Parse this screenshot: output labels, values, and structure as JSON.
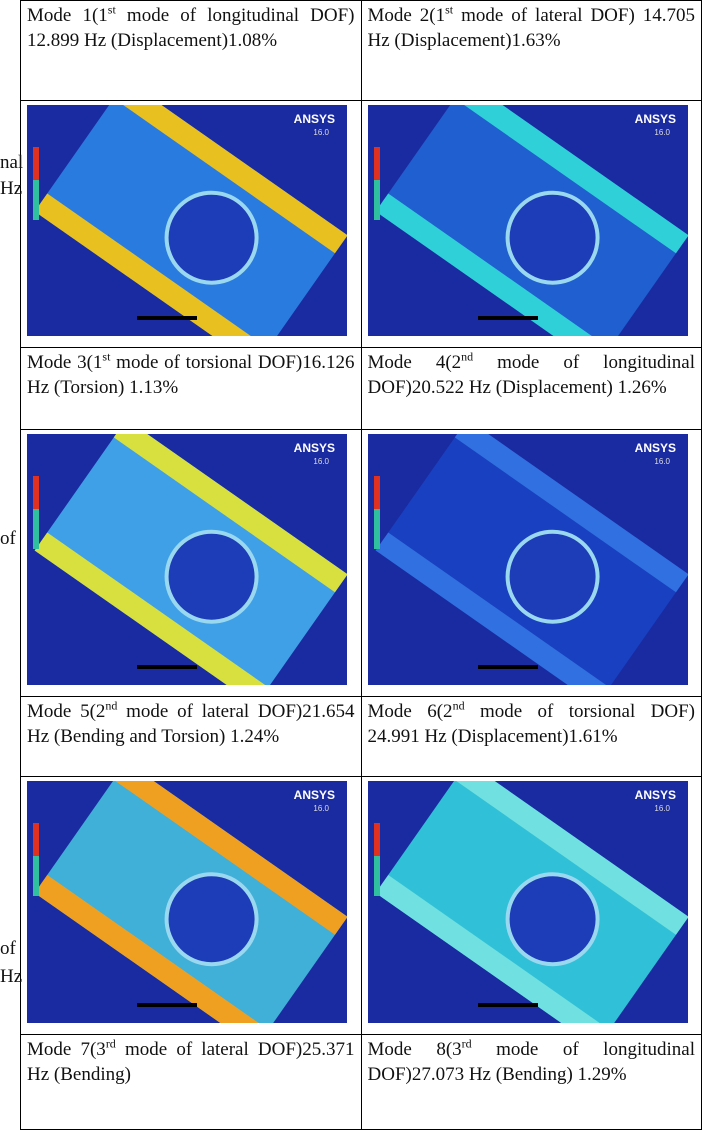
{
  "table": {
    "cells": [
      {
        "before": "Mode 1(1",
        "sup": "st",
        "after": " mode of longitudinal DOF) 12.899 Hz (Displacement)1.08%"
      },
      {
        "before": "Mode 2(1",
        "sup": "st",
        "after": " mode of lateral DOF) 14.705 Hz (Displacement)1.63%"
      },
      {
        "before": "Mode 3(1",
        "sup": "st",
        "after": " mode of torsional DOF)16.126 Hz (Torsion) 1.13%"
      },
      {
        "before": "Mode 4(2",
        "sup": "nd",
        "after": " mode of longitudinal DOF)20.522 Hz (Displacement) 1.26%"
      },
      {
        "before": "Mode 5(2",
        "sup": "nd",
        "after": " mode of lateral DOF)21.654 Hz (Bending and Torsion) 1.24%"
      },
      {
        "before": "Mode 6(2",
        "sup": "nd",
        "after": " mode of torsional DOF) 24.991 Hz (Displacement)1.61%"
      },
      {
        "before": "Mode 7(3",
        "sup": "rd",
        "after": " mode of lateral DOF)25.371 Hz (Bending)"
      },
      {
        "before": "Mode 8(3",
        "sup": "rd",
        "after": " mode of longitudinal DOF)27.073 Hz (Bending) 1.29%"
      }
    ],
    "image_brand": {
      "name": "ANSYS",
      "version": "16.0"
    }
  },
  "margin_fragments": [
    "nal",
    "Hz",
    "of",
    "of",
    "Hz"
  ]
}
